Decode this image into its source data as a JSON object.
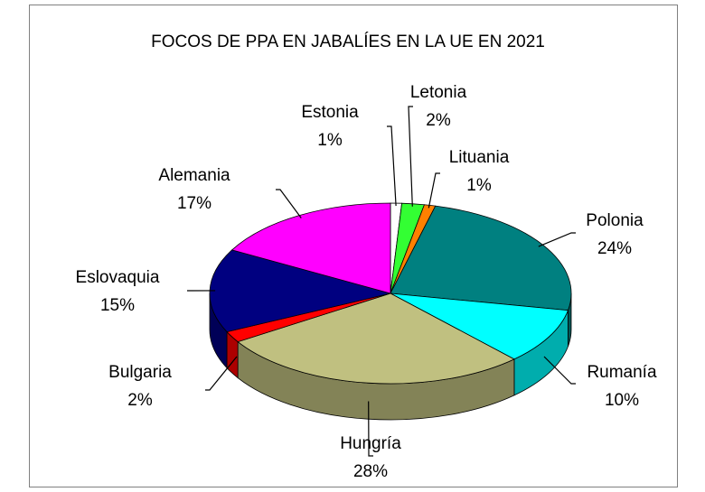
{
  "chart_data": {
    "type": "pie3d",
    "title": "FOCOS DE PPA EN JABALÍES EN LA UE EN 2021",
    "categories": [
      "Estonia",
      "Letonia",
      "Lituania",
      "Polonia",
      "Rumanía",
      "Hungría",
      "Bulgaria",
      "Eslovaquia",
      "Alemania"
    ],
    "values": [
      1,
      2,
      1,
      24,
      10,
      28,
      2,
      15,
      17
    ],
    "value_labels": [
      "1%",
      "2%",
      "1%",
      "24%",
      "10%",
      "28%",
      "2%",
      "15%",
      "17%"
    ],
    "colors": [
      "#ffffff",
      "#33ff33",
      "#ff8000",
      "#008080",
      "#00ffff",
      "#c0c080",
      "#ff0000",
      "#000080",
      "#ff00ff"
    ]
  }
}
